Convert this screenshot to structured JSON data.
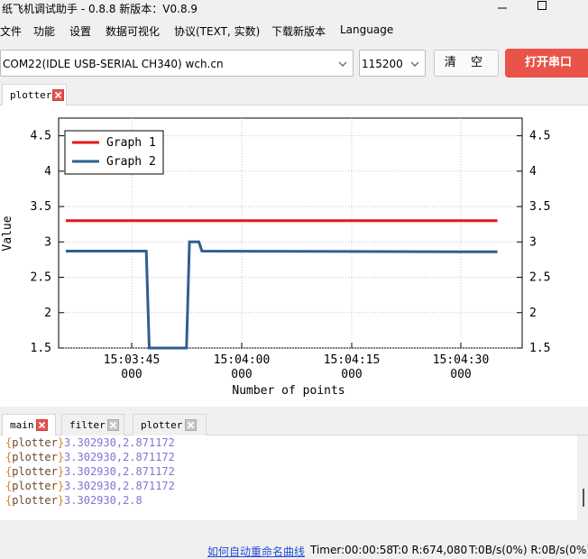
{
  "window": {
    "title": "纸飞机调试助手 - 0.8.8 新版本：V0.8.9"
  },
  "menu": [
    "文件",
    "功能",
    "设置",
    "数据可视化",
    "协议(TEXT, 实数)",
    "下载新版本",
    "Language"
  ],
  "toolbar": {
    "port": "COM22(IDLE  USB-SERIAL CH340) wch.cn",
    "baud": "115200",
    "clear_label": "清 空",
    "open_label": "打开串口",
    "open_color": "#e9534a"
  },
  "top_tabs": [
    {
      "label": "plotter",
      "active": true
    }
  ],
  "chart_data": {
    "type": "line",
    "xlabel": "Number of points",
    "ylabel": "Value",
    "ylim": [
      1.5,
      4.75
    ],
    "yticks": [
      "1.5",
      "2",
      "2.5",
      "3",
      "3.5",
      "4",
      "4.5"
    ],
    "xticks": [
      {
        "time": "15:03:45",
        "sub": "000"
      },
      {
        "time": "15:04:00",
        "sub": "000"
      },
      {
        "time": "15:04:15",
        "sub": "000"
      },
      {
        "time": "15:04:30",
        "sub": "000"
      }
    ],
    "x_start": "15:03:37",
    "x_end": "15:04:36",
    "legend": "top-left",
    "grid": true,
    "series": [
      {
        "name": "Graph 1",
        "color": "#e81416",
        "points": [
          [
            0,
            3.3
          ],
          [
            59,
            3.3
          ]
        ]
      },
      {
        "name": "Graph 2",
        "color": "#2f5f8f",
        "points": [
          [
            0,
            2.87
          ],
          [
            11,
            2.87
          ],
          [
            11.4,
            1.5
          ],
          [
            16.5,
            1.5
          ],
          [
            16.9,
            3.0
          ],
          [
            18.2,
            3.0
          ],
          [
            18.6,
            2.87
          ],
          [
            59,
            2.86
          ]
        ]
      }
    ]
  },
  "bottom_tabs": [
    {
      "label": "main",
      "active": true
    },
    {
      "label": "filter",
      "active": false
    },
    {
      "label": "plotter",
      "active": false
    }
  ],
  "log": {
    "lines": [
      {
        "tag": "plotter",
        "value": "3.302930,2.871172"
      },
      {
        "tag": "plotter",
        "value": "3.302930,2.871172"
      },
      {
        "tag": "plotter",
        "value": "3.302930,2.871172"
      },
      {
        "tag": "plotter",
        "value": "3.302930,2.871172"
      },
      {
        "tag": "plotter",
        "value": "3.302930,2.8"
      }
    ]
  },
  "status": {
    "link": "如何自动重命名曲线",
    "timer": "Timer:00:00:58",
    "counts": "T:0 R:674,080",
    "rates": "T:0B/s(0%) R:0B/s(0%)"
  }
}
